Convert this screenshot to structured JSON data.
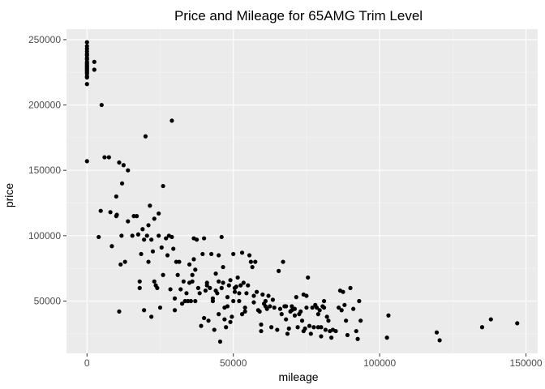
{
  "chart_data": {
    "type": "scatter",
    "title": "Price and Mileage for 65AMG Trim Level",
    "xlabel": "mileage",
    "ylabel": "price",
    "xlim": [
      -7000,
      154000
    ],
    "ylim": [
      10000,
      258000
    ],
    "x_ticks": [
      0,
      50000,
      100000,
      150000
    ],
    "x_tick_labels": [
      "0",
      "50000",
      "100000",
      "150000"
    ],
    "y_ticks": [
      50000,
      100000,
      150000,
      200000,
      250000
    ],
    "y_tick_labels": [
      "50000",
      "100000",
      "150000",
      "200000",
      "250000"
    ],
    "grid": true,
    "legend": "none",
    "colors": {
      "panel": "#ebebeb",
      "grid_major": "#ffffff",
      "grid_minor": "#f5f5f5",
      "point": "#000000",
      "tick_text": "#4d4d4d"
    },
    "points": [
      [
        0,
        248000
      ],
      [
        0,
        245000
      ],
      [
        0,
        243000
      ],
      [
        0,
        241000
      ],
      [
        0,
        239000
      ],
      [
        0,
        238000
      ],
      [
        0,
        236000
      ],
      [
        0,
        235000
      ],
      [
        0,
        233000
      ],
      [
        0,
        232000
      ],
      [
        0,
        231000
      ],
      [
        0,
        230000
      ],
      [
        0,
        229000
      ],
      [
        0,
        228000
      ],
      [
        0,
        227000
      ],
      [
        0,
        226000
      ],
      [
        0,
        225000
      ],
      [
        0,
        224000
      ],
      [
        0,
        222000
      ],
      [
        0,
        221000
      ],
      [
        0,
        216000
      ],
      [
        0,
        157000
      ],
      [
        2500,
        227000
      ],
      [
        2500,
        233000
      ],
      [
        4000,
        99000
      ],
      [
        4700,
        119000
      ],
      [
        5000,
        200000
      ],
      [
        6000,
        160000
      ],
      [
        7500,
        160000
      ],
      [
        8000,
        118000
      ],
      [
        8500,
        92000
      ],
      [
        10000,
        130000
      ],
      [
        10000,
        115000
      ],
      [
        10200,
        116000
      ],
      [
        11000,
        42000
      ],
      [
        11000,
        156000
      ],
      [
        11500,
        78000
      ],
      [
        11800,
        100000
      ],
      [
        12000,
        140000
      ],
      [
        12500,
        154000
      ],
      [
        13000,
        80000
      ],
      [
        14000,
        111000
      ],
      [
        14000,
        150000
      ],
      [
        15500,
        100000
      ],
      [
        16000,
        115000
      ],
      [
        17000,
        115000
      ],
      [
        17500,
        101000
      ],
      [
        18000,
        65000
      ],
      [
        18000,
        60000
      ],
      [
        18500,
        86000
      ],
      [
        19000,
        105000
      ],
      [
        19500,
        97000
      ],
      [
        19500,
        43000
      ],
      [
        20000,
        176000
      ],
      [
        20500,
        100000
      ],
      [
        21000,
        108000
      ],
      [
        21000,
        80000
      ],
      [
        21500,
        123000
      ],
      [
        22000,
        97000
      ],
      [
        22000,
        38000
      ],
      [
        22500,
        88000
      ],
      [
        23000,
        65000
      ],
      [
        23000,
        113000
      ],
      [
        23500,
        62000
      ],
      [
        24000,
        60000
      ],
      [
        24500,
        100000
      ],
      [
        24500,
        117000
      ],
      [
        25000,
        45000
      ],
      [
        25500,
        91000
      ],
      [
        26000,
        70000
      ],
      [
        26000,
        138000
      ],
      [
        27000,
        98000
      ],
      [
        27500,
        85000
      ],
      [
        28000,
        100000
      ],
      [
        28500,
        59000
      ],
      [
        29000,
        188000
      ],
      [
        29000,
        99000
      ],
      [
        29500,
        90000
      ],
      [
        30000,
        43000
      ],
      [
        30000,
        52000
      ],
      [
        30500,
        80000
      ],
      [
        31000,
        70000
      ],
      [
        31500,
        80000
      ],
      [
        32000,
        59000
      ],
      [
        32500,
        48000
      ],
      [
        33000,
        65000
      ],
      [
        33500,
        50000
      ],
      [
        34000,
        56000
      ],
      [
        34500,
        50000
      ],
      [
        35000,
        78000
      ],
      [
        35000,
        64000
      ],
      [
        35500,
        50000
      ],
      [
        36000,
        70000
      ],
      [
        36000,
        65000
      ],
      [
        36500,
        82000
      ],
      [
        36500,
        98000
      ],
      [
        37000,
        50000
      ],
      [
        37000,
        74000
      ],
      [
        37500,
        97000
      ],
      [
        38000,
        60000
      ],
      [
        38500,
        56000
      ],
      [
        39000,
        31000
      ],
      [
        39500,
        86000
      ],
      [
        40000,
        98000
      ],
      [
        40000,
        37000
      ],
      [
        40500,
        58000
      ],
      [
        41000,
        62000
      ],
      [
        41000,
        64000
      ],
      [
        41500,
        35000
      ],
      [
        42000,
        60000
      ],
      [
        42500,
        86000
      ],
      [
        43000,
        52000
      ],
      [
        43000,
        50000
      ],
      [
        43500,
        28000
      ],
      [
        44000,
        58000
      ],
      [
        44000,
        71000
      ],
      [
        44500,
        56000
      ],
      [
        45000,
        40000
      ],
      [
        45000,
        65000
      ],
      [
        45000,
        85000
      ],
      [
        45500,
        19000
      ],
      [
        46000,
        60000
      ],
      [
        46000,
        99000
      ],
      [
        46500,
        76000
      ],
      [
        46500,
        64000
      ],
      [
        47000,
        45000
      ],
      [
        47000,
        36000
      ],
      [
        47500,
        30000
      ],
      [
        48000,
        53000
      ],
      [
        48000,
        46000
      ],
      [
        48500,
        62000
      ],
      [
        49000,
        34000
      ],
      [
        49000,
        66000
      ],
      [
        49500,
        38000
      ],
      [
        50000,
        86000
      ],
      [
        50000,
        50000
      ],
      [
        50500,
        60000
      ],
      [
        50500,
        57000
      ],
      [
        51000,
        61000
      ],
      [
        51500,
        68000
      ],
      [
        52000,
        50000
      ],
      [
        52000,
        56000
      ],
      [
        52500,
        62000
      ],
      [
        53000,
        87000
      ],
      [
        53000,
        40000
      ],
      [
        53500,
        64000
      ],
      [
        54000,
        45000
      ],
      [
        54000,
        42000
      ],
      [
        54500,
        56000
      ],
      [
        55000,
        62000
      ],
      [
        55500,
        85000
      ],
      [
        56000,
        80000
      ],
      [
        56500,
        76000
      ],
      [
        57000,
        54000
      ],
      [
        57500,
        80000
      ],
      [
        57000,
        49000
      ],
      [
        58000,
        57000
      ],
      [
        58500,
        43000
      ],
      [
        59000,
        42000
      ],
      [
        59500,
        32000
      ],
      [
        59500,
        27000
      ],
      [
        60000,
        55000
      ],
      [
        60500,
        48000
      ],
      [
        61000,
        46000
      ],
      [
        61000,
        50000
      ],
      [
        61500,
        44000
      ],
      [
        62000,
        54000
      ],
      [
        62500,
        46000
      ],
      [
        63000,
        30000
      ],
      [
        63500,
        51000
      ],
      [
        64000,
        45000
      ],
      [
        65000,
        28000
      ],
      [
        65500,
        73000
      ],
      [
        66000,
        44000
      ],
      [
        66500,
        40000
      ],
      [
        67000,
        80000
      ],
      [
        67500,
        46000
      ],
      [
        68000,
        46000
      ],
      [
        68000,
        36000
      ],
      [
        68500,
        25000
      ],
      [
        69000,
        29000
      ],
      [
        69500,
        42000
      ],
      [
        70000,
        43000
      ],
      [
        70000,
        46000
      ],
      [
        71000,
        44000
      ],
      [
        71000,
        39000
      ],
      [
        71500,
        53000
      ],
      [
        72000,
        30000
      ],
      [
        72500,
        40000
      ],
      [
        73000,
        42000
      ],
      [
        73500,
        35000
      ],
      [
        74000,
        27000
      ],
      [
        74000,
        55000
      ],
      [
        74500,
        29000
      ],
      [
        75000,
        45000
      ],
      [
        75000,
        54000
      ],
      [
        75500,
        68000
      ],
      [
        76000,
        31000
      ],
      [
        76500,
        25000
      ],
      [
        77000,
        45000
      ],
      [
        77500,
        30000
      ],
      [
        78000,
        47000
      ],
      [
        78500,
        45000
      ],
      [
        79000,
        30000
      ],
      [
        79000,
        40000
      ],
      [
        79500,
        43000
      ],
      [
        80000,
        30000
      ],
      [
        80000,
        23000
      ],
      [
        80500,
        46000
      ],
      [
        81000,
        50000
      ],
      [
        81000,
        45000
      ],
      [
        81500,
        28000
      ],
      [
        82000,
        38000
      ],
      [
        82500,
        35000
      ],
      [
        83000,
        27000
      ],
      [
        83500,
        22000
      ],
      [
        84000,
        28000
      ],
      [
        85000,
        27000
      ],
      [
        86000,
        45000
      ],
      [
        86500,
        58000
      ],
      [
        87000,
        43000
      ],
      [
        87500,
        57000
      ],
      [
        88000,
        47000
      ],
      [
        88500,
        35000
      ],
      [
        89000,
        24000
      ],
      [
        90000,
        60000
      ],
      [
        91000,
        44000
      ],
      [
        92000,
        27000
      ],
      [
        92500,
        21000
      ],
      [
        93000,
        50000
      ],
      [
        93500,
        35000
      ],
      [
        102500,
        22000
      ],
      [
        103000,
        39000
      ],
      [
        119500,
        26000
      ],
      [
        120500,
        20000
      ],
      [
        135000,
        30000
      ],
      [
        138000,
        36000
      ],
      [
        147000,
        33000
      ]
    ]
  }
}
